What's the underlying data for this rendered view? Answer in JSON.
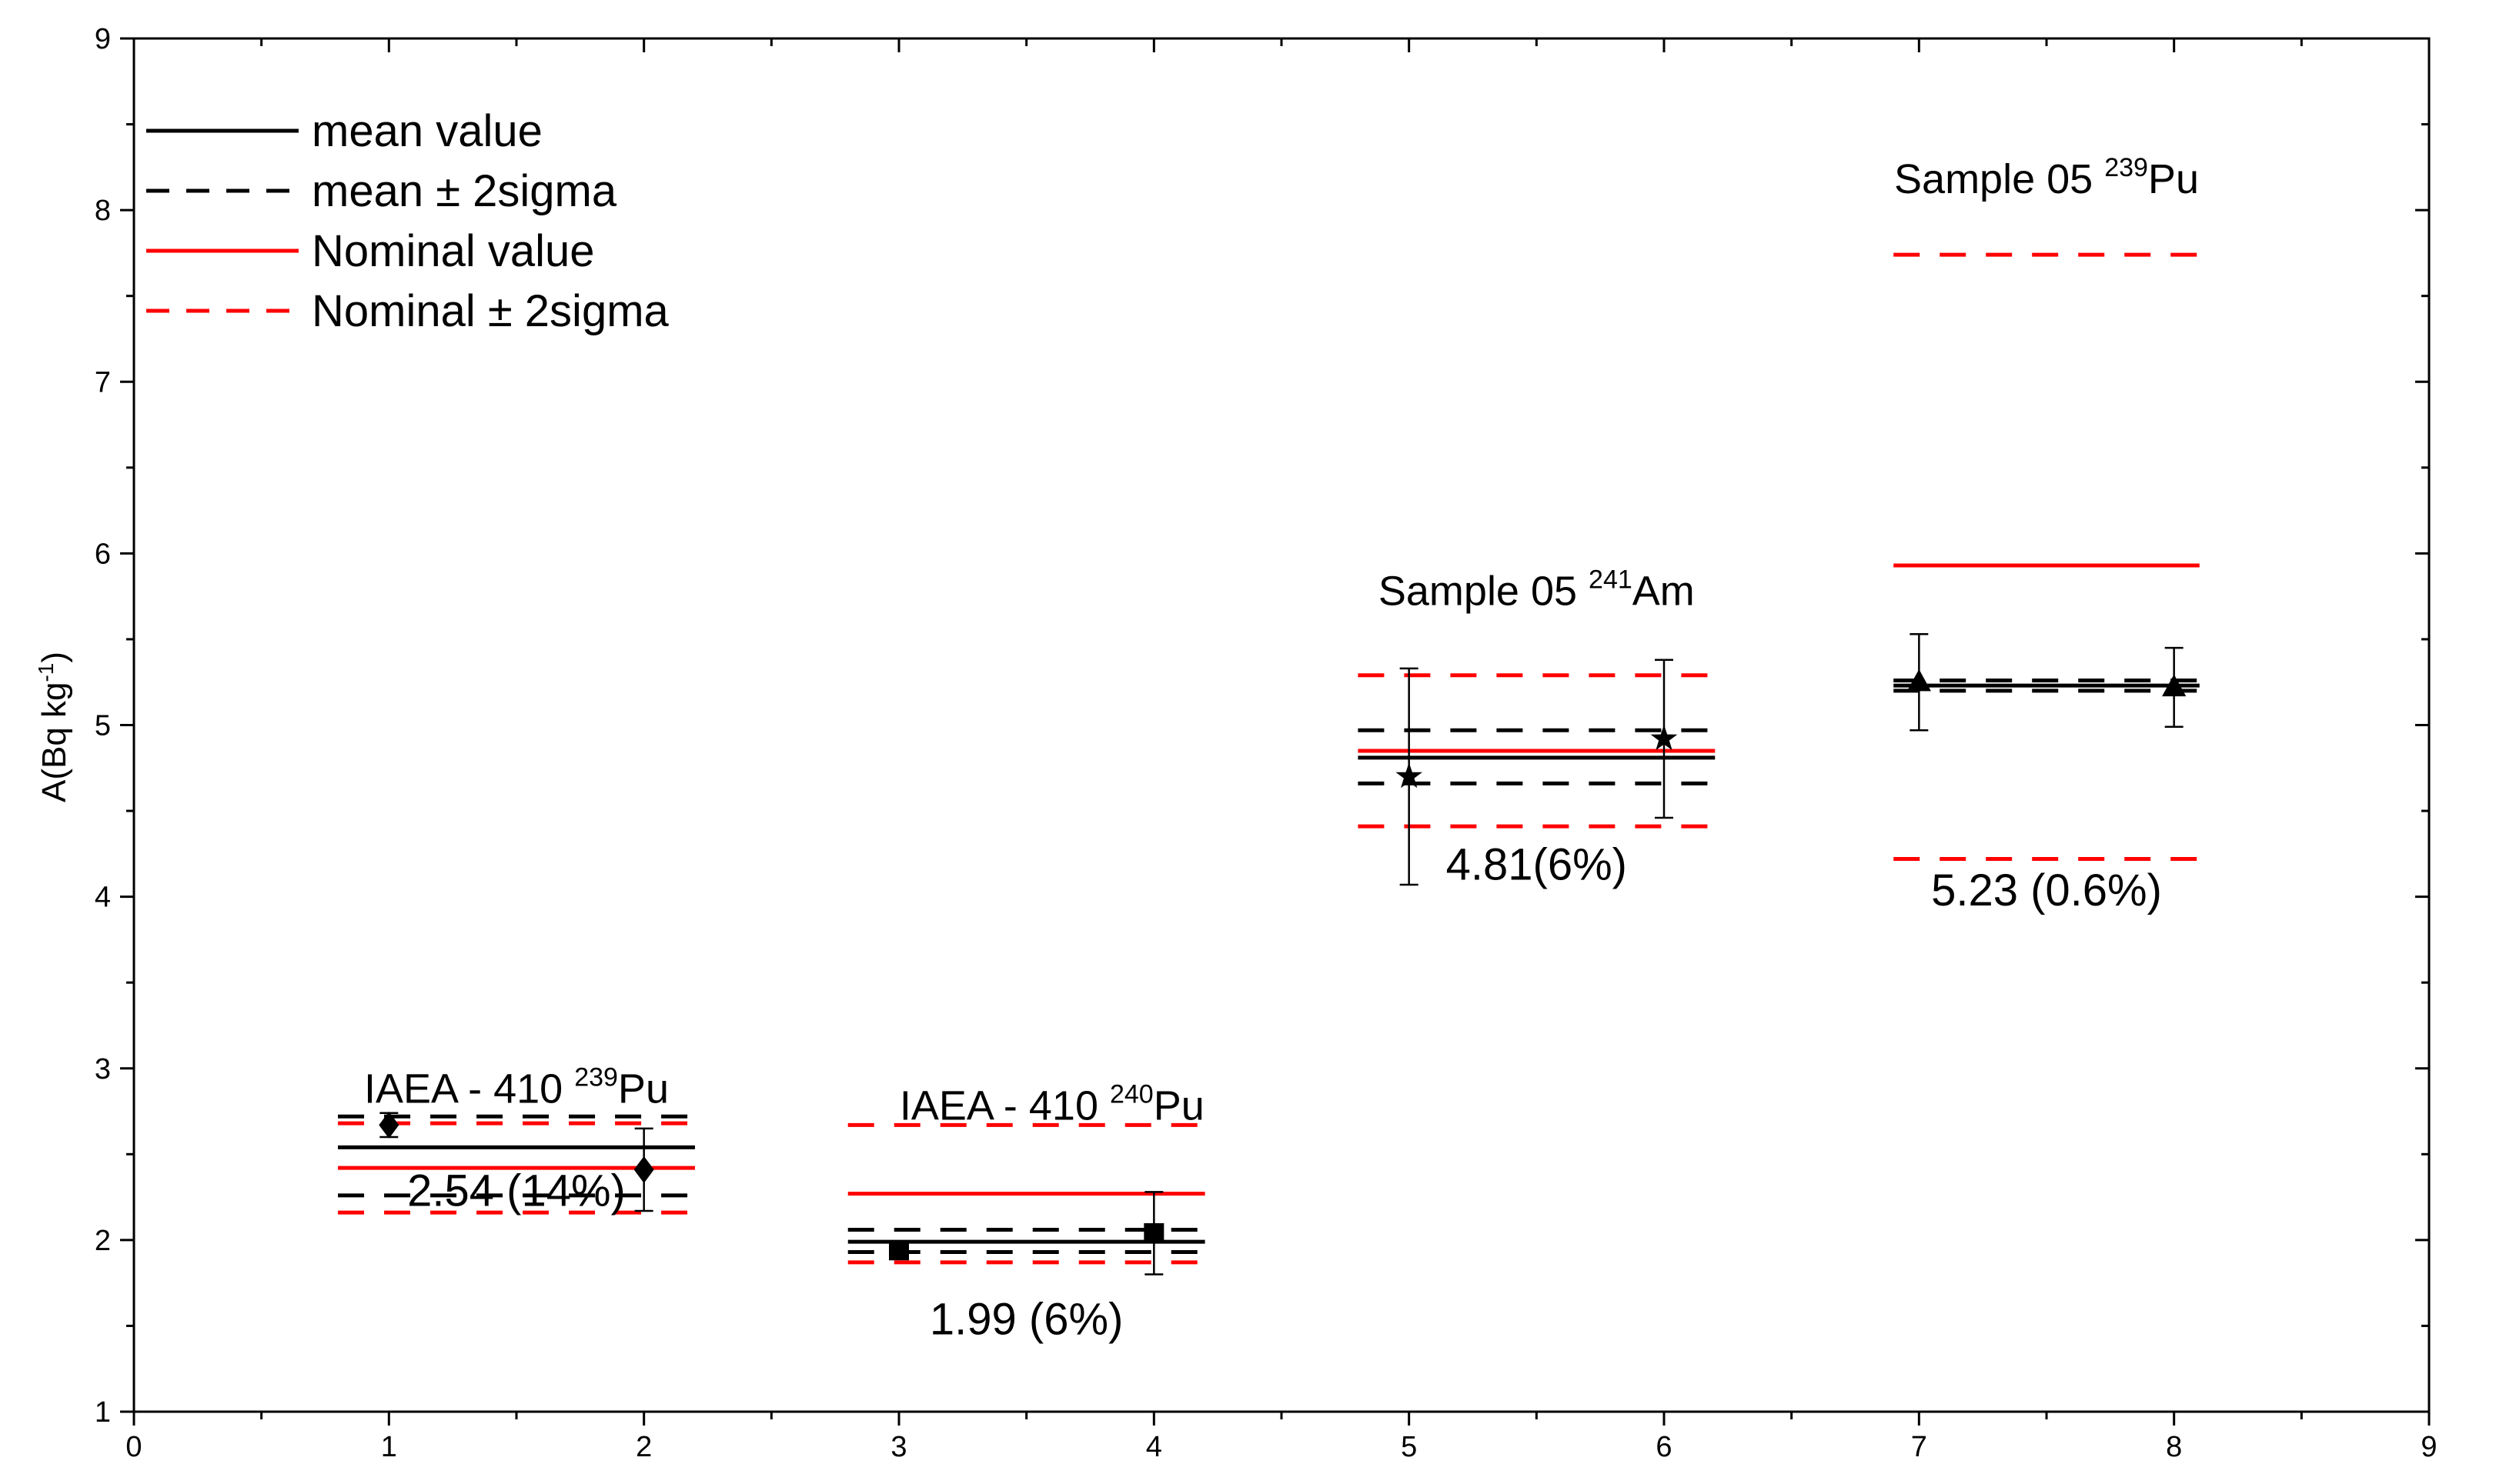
{
  "chart_data": {
    "type": "scatter",
    "title": "",
    "xlabel": "",
    "ylabel": "A(Bq kg-1)",
    "ylabel_parts": {
      "main": "A(Bq kg",
      "sup": "-1",
      "end": ")"
    },
    "xlim": [
      0,
      9
    ],
    "ylim": [
      1,
      9
    ],
    "x_ticks": [
      0,
      1,
      2,
      3,
      4,
      5,
      6,
      7,
      8,
      9
    ],
    "y_ticks": [
      1,
      2,
      3,
      4,
      5,
      6,
      7,
      8,
      9
    ],
    "grid": false,
    "legend_position": "top-left",
    "legend": [
      {
        "label": "mean value",
        "color": "#000000",
        "dash": "solid"
      },
      {
        "label": "mean  ± 2sigma",
        "color": "#000000",
        "dash": "dashed"
      },
      {
        "label": "Nominal value",
        "color": "#ff0000",
        "dash": "solid"
      },
      {
        "label": "Nominal  ± 2sigma",
        "color": "#ff0000",
        "dash": "dashed"
      }
    ],
    "groups": [
      {
        "label_main": "IAEA - 410 ",
        "label_sup": "239",
        "label_end": "Pu",
        "marker": "diamond",
        "x_range": [
          0.8,
          2.2
        ],
        "points": [
          {
            "x": 1,
            "y": 2.67,
            "err": 0.07
          },
          {
            "x": 2,
            "y": 2.41,
            "err": 0.24
          }
        ],
        "mean": 2.54,
        "mean_lower": 2.26,
        "mean_upper": 2.72,
        "nominal": 2.42,
        "nominal_lower": 2.16,
        "nominal_upper": 2.68,
        "summary": "2.54 (14%)"
      },
      {
        "label_main": "IAEA - 410 ",
        "label_sup": "240",
        "label_end": "Pu",
        "marker": "square",
        "x_range": [
          2.8,
          4.2
        ],
        "points": [
          {
            "x": 3,
            "y": 1.94,
            "err": 0.04
          },
          {
            "x": 4,
            "y": 2.04,
            "err": 0.24
          }
        ],
        "mean": 1.99,
        "mean_lower": 1.93,
        "mean_upper": 2.06,
        "nominal": 2.27,
        "nominal_lower": 1.87,
        "nominal_upper": 2.67,
        "summary": "1.99 (6%)"
      },
      {
        "label_main": "Sample 05   ",
        "label_sup": "241",
        "label_end": "Am",
        "marker": "star",
        "x_range": [
          4.8,
          6.2
        ],
        "points": [
          {
            "x": 5,
            "y": 4.7,
            "err": 0.63
          },
          {
            "x": 6,
            "y": 4.92,
            "err": 0.46
          }
        ],
        "mean": 4.81,
        "mean_lower": 4.66,
        "mean_upper": 4.97,
        "nominal": 4.85,
        "nominal_lower": 4.41,
        "nominal_upper": 5.29,
        "summary": "4.81(6%)"
      },
      {
        "label_main": "Sample 05   ",
        "label_sup": "239",
        "label_end": "Pu",
        "marker": "triangle",
        "x_range": [
          6.9,
          8.1
        ],
        "points": [
          {
            "x": 7,
            "y": 5.25,
            "err": 0.28
          },
          {
            "x": 8,
            "y": 5.22,
            "err": 0.23
          }
        ],
        "mean": 5.23,
        "mean_lower": 5.2,
        "mean_upper": 5.26,
        "nominal": 5.93,
        "nominal_lower": 4.22,
        "nominal_upper": 7.74,
        "summary": "5.23 (0.6%)"
      }
    ]
  }
}
